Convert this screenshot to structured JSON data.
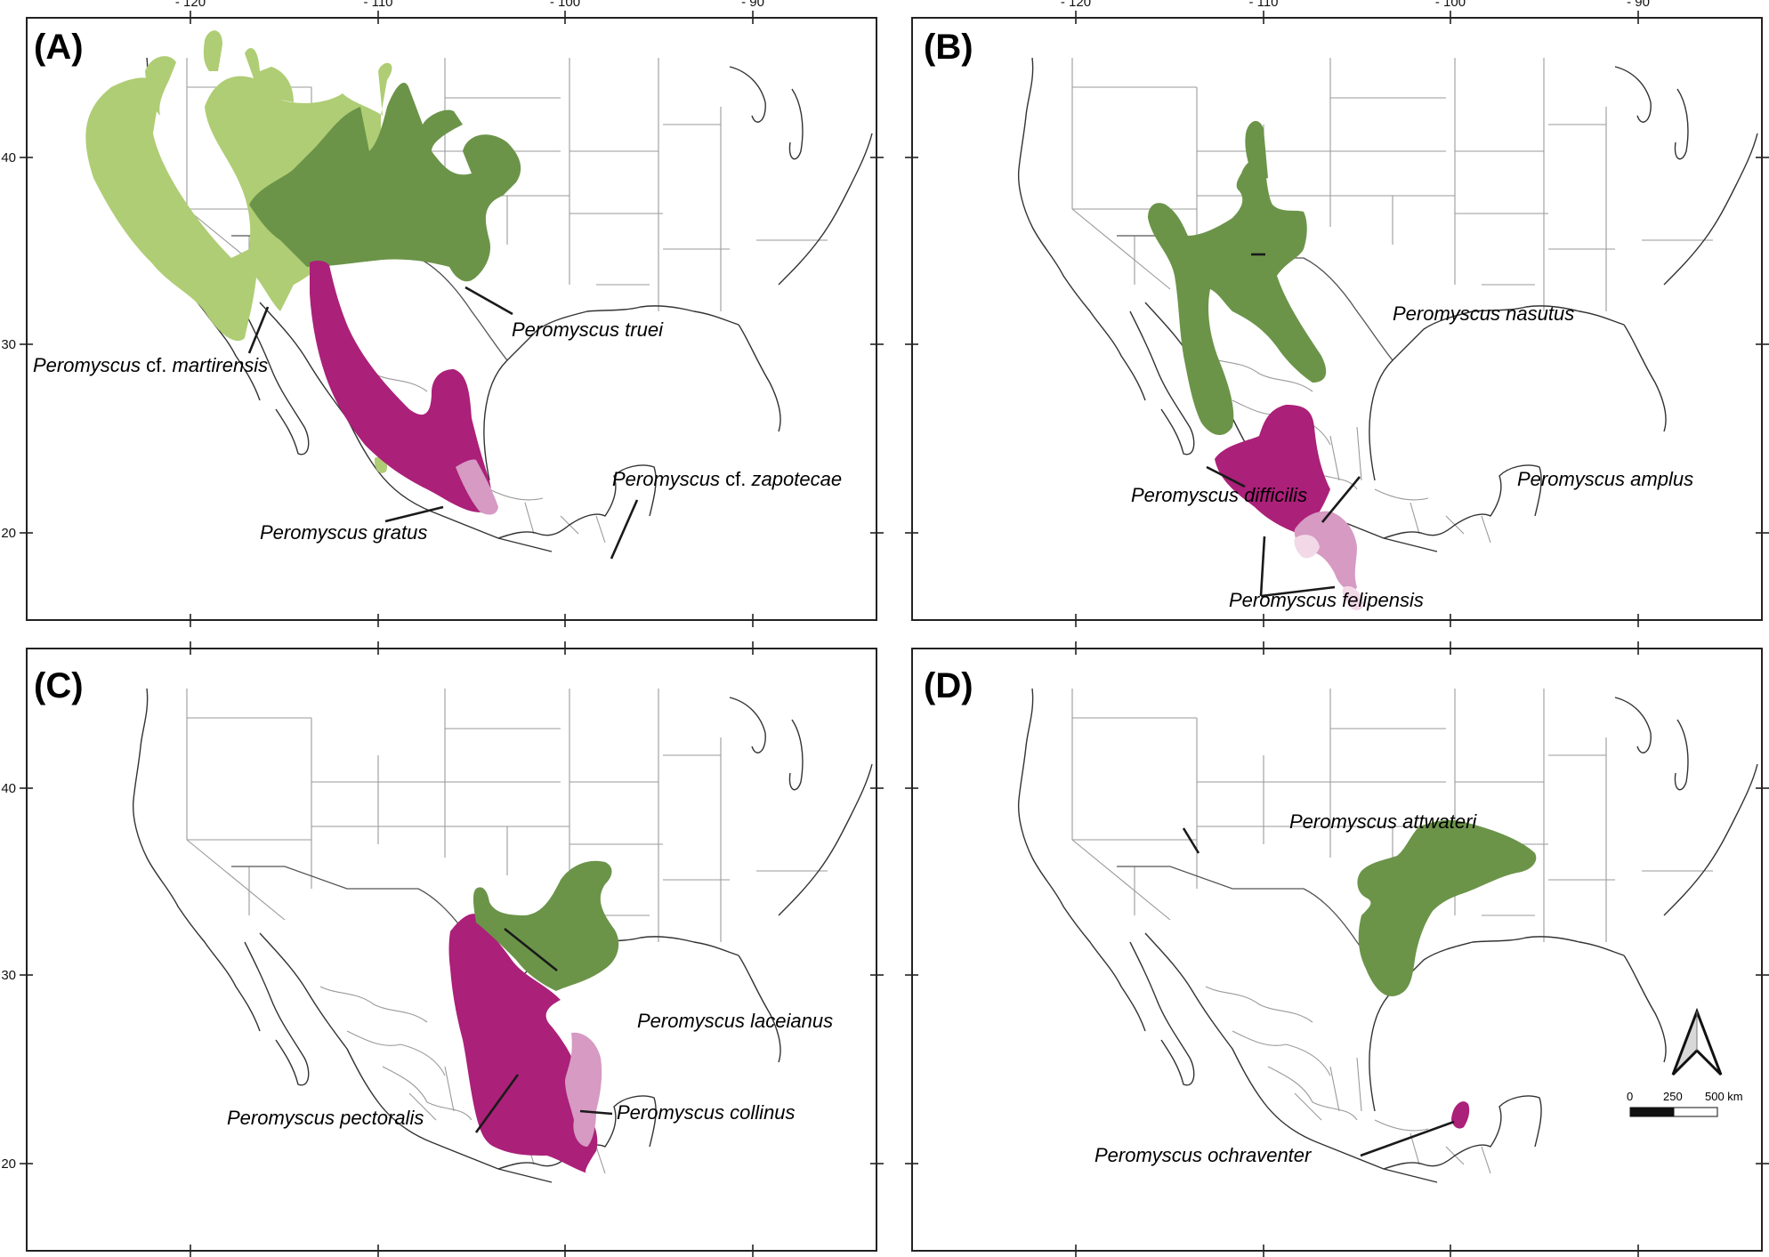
{
  "figure": {
    "type": "species-range-maps",
    "axis": {
      "longitude_ticks": [
        "-120",
        "-110",
        "-100",
        "-90"
      ],
      "latitude_ticks": [
        "40",
        "30",
        "20"
      ]
    },
    "colors": {
      "dark_green": "#6b9449",
      "light_green": "#afcd74",
      "dark_magenta": "#ab2079",
      "light_pink": "#d69ac3",
      "pale_pink": "#f3d9e8"
    },
    "panels": [
      {
        "letter": "(A)",
        "species": [
          {
            "genus": "Peromyscus",
            "qualifier": "cf.",
            "epithet": "martirensis",
            "color": "light_green"
          },
          {
            "genus": "Peromyscus",
            "qualifier": "",
            "epithet": "truei",
            "color": "dark_green"
          },
          {
            "genus": "Peromyscus",
            "qualifier": "",
            "epithet": "gratus",
            "color": "dark_magenta"
          },
          {
            "genus": "Peromyscus",
            "qualifier": "cf.",
            "epithet": "zapotecae",
            "color": "light_pink"
          }
        ]
      },
      {
        "letter": "(B)",
        "species": [
          {
            "genus": "Peromyscus",
            "qualifier": "",
            "epithet": "nasutus",
            "color": "dark_green"
          },
          {
            "genus": "Peromyscus",
            "qualifier": "",
            "epithet": "difficilis",
            "color": "dark_magenta"
          },
          {
            "genus": "Peromyscus",
            "qualifier": "",
            "epithet": "amplus",
            "color": "light_pink"
          },
          {
            "genus": "Peromyscus",
            "qualifier": "",
            "epithet": "felipensis",
            "color": "pale_pink"
          }
        ]
      },
      {
        "letter": "(C)",
        "species": [
          {
            "genus": "Peromyscus",
            "qualifier": "",
            "epithet": "laceianus",
            "color": "dark_green"
          },
          {
            "genus": "Peromyscus",
            "qualifier": "",
            "epithet": "pectoralis",
            "color": "dark_magenta"
          },
          {
            "genus": "Peromyscus",
            "qualifier": "",
            "epithet": "collinus",
            "color": "light_pink"
          }
        ]
      },
      {
        "letter": "(D)",
        "species": [
          {
            "genus": "Peromyscus",
            "qualifier": "",
            "epithet": "attwateri",
            "color": "dark_green"
          },
          {
            "genus": "Peromyscus",
            "qualifier": "",
            "epithet": "ochraventer",
            "color": "dark_magenta"
          }
        ]
      }
    ],
    "scale_bar": {
      "labels": [
        "0",
        "250",
        "500 km"
      ]
    },
    "north_arrow": "north-arrow"
  }
}
